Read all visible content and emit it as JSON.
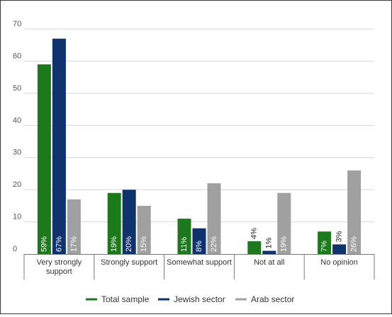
{
  "chart_data": {
    "type": "bar",
    "categories": [
      "Very strongly support",
      "Strongly support",
      "Somewhat support",
      "Not at all",
      "No opinion"
    ],
    "category_lines": [
      [
        "Very strongly",
        "support"
      ],
      [
        "Strongly support"
      ],
      [
        "Somewhat support"
      ],
      [
        "Not at all"
      ],
      [
        "No opinion"
      ]
    ],
    "series": [
      {
        "name": "Total sample",
        "color": "#1c7a1c",
        "values": [
          59,
          19,
          11,
          4,
          7
        ],
        "labels": [
          "59%",
          "19%",
          "11%",
          "4%",
          "7%"
        ]
      },
      {
        "name": "Jewish sector",
        "color": "#10336e",
        "values": [
          67,
          20,
          8,
          1,
          3
        ],
        "labels": [
          "67%",
          "20%",
          "8%",
          "1%",
          "3%"
        ]
      },
      {
        "name": "Arab sector",
        "color": "#a0a0a0",
        "values": [
          17,
          15,
          22,
          19,
          26
        ],
        "labels": [
          "17%",
          "15%",
          "22%",
          "19%",
          "26%"
        ]
      }
    ],
    "yticks": [
      0,
      10,
      20,
      30,
      40,
      50,
      60,
      70
    ],
    "ylim": [
      0,
      70
    ],
    "grid": true,
    "legend_position": "bottom"
  }
}
